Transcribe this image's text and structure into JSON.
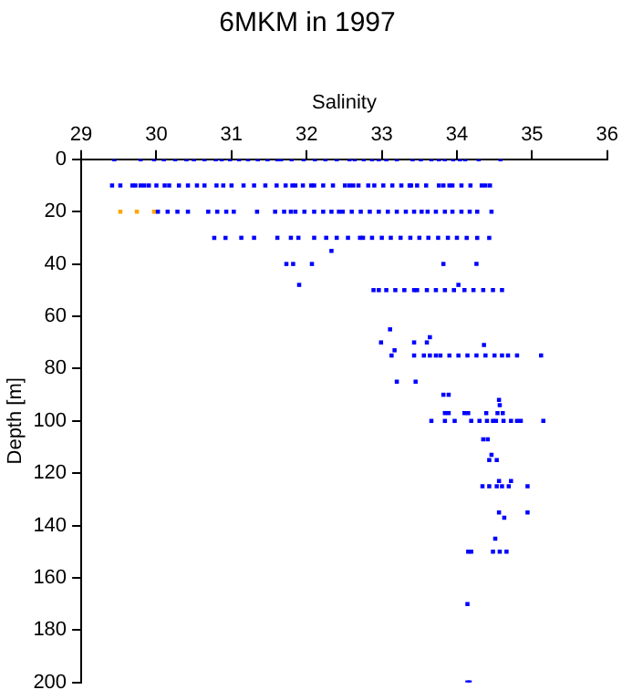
{
  "chart_data": {
    "type": "scatter",
    "title": "6MKM in 1997",
    "xlabel": "Salinity",
    "ylabel": "Depth [m]",
    "xlim": [
      29,
      36
    ],
    "xticks": [
      29,
      30,
      31,
      32,
      33,
      34,
      35,
      36
    ],
    "ylim": [
      200,
      0
    ],
    "yticks": [
      0,
      20,
      40,
      60,
      80,
      100,
      120,
      140,
      160,
      180,
      200
    ],
    "grid": false,
    "legend": false,
    "marker": "square",
    "series": [
      {
        "color": "#0000ff",
        "x": [
          29.44,
          29.79,
          29.97,
          30.1,
          30.25,
          30.4,
          30.5,
          30.64,
          30.79,
          30.87,
          30.98,
          31.1,
          31.22,
          31.35,
          31.48,
          31.61,
          31.66,
          31.8,
          31.96,
          32.11,
          32.25,
          32.4,
          32.57,
          32.64,
          32.76,
          32.87,
          32.96,
          33.06,
          33.2,
          33.41,
          33.52,
          33.66,
          33.76,
          33.84,
          33.95,
          34.04,
          34.11,
          34.29,
          34.58,
          29.41,
          29.52,
          29.68,
          29.72,
          29.79,
          29.84,
          29.9,
          30.0,
          30.11,
          30.17,
          30.3,
          30.42,
          30.54,
          30.64,
          30.8,
          30.89,
          31.0,
          31.16,
          31.3,
          31.45,
          31.6,
          31.72,
          31.81,
          31.85,
          31.95,
          32.06,
          32.1,
          32.22,
          32.35,
          32.51,
          32.57,
          32.62,
          32.69,
          32.82,
          32.9,
          33.02,
          33.14,
          33.26,
          33.37,
          33.39,
          33.47,
          33.59,
          33.76,
          33.82,
          33.9,
          33.94,
          34.06,
          34.18,
          34.33,
          34.38,
          34.44,
          30.02,
          30.15,
          30.28,
          30.42,
          30.69,
          30.81,
          30.93,
          31.03,
          31.34,
          31.58,
          31.7,
          31.79,
          31.85,
          31.97,
          32.1,
          32.22,
          32.33,
          32.43,
          32.48,
          32.6,
          32.72,
          32.84,
          32.96,
          33.08,
          33.2,
          33.32,
          33.43,
          33.53,
          33.61,
          33.72,
          33.84,
          33.94,
          34.06,
          34.17,
          34.27,
          34.46,
          30.77,
          30.92,
          31.13,
          31.3,
          31.61,
          31.79,
          31.89,
          32.1,
          32.26,
          32.4,
          32.55,
          32.71,
          32.75,
          32.87,
          33.0,
          33.12,
          33.25,
          33.38,
          33.5,
          33.62,
          33.75,
          33.88,
          34.0,
          34.13,
          34.27,
          34.43,
          32.33,
          31.73,
          31.82,
          32.07,
          33.82,
          34.26,
          31.9,
          34.02,
          32.89,
          32.96,
          33.06,
          33.18,
          33.3,
          33.43,
          33.47,
          33.6,
          33.72,
          33.84,
          33.96,
          34.1,
          34.22,
          34.35,
          34.48,
          34.6,
          33.11,
          33.64,
          32.99,
          33.43,
          33.6,
          34.36,
          33.17,
          33.13,
          33.43,
          33.56,
          33.64,
          33.72,
          33.78,
          33.9,
          34.02,
          34.14,
          34.26,
          34.38,
          34.5,
          34.6,
          34.68,
          34.8,
          35.12,
          33.2,
          33.45,
          33.82,
          33.89,
          34.56,
          34.57,
          33.84,
          33.89,
          34.1,
          34.15,
          34.39,
          34.54,
          34.61,
          33.66,
          33.84,
          33.97,
          34.19,
          34.3,
          34.4,
          34.48,
          34.52,
          34.62,
          34.72,
          34.8,
          34.85,
          35.15,
          34.35,
          34.41,
          34.46,
          34.43,
          34.53,
          34.56,
          34.72,
          34.34,
          34.43,
          34.53,
          34.6,
          34.69,
          34.94,
          34.56,
          34.94,
          34.63,
          34.51,
          34.15,
          34.19,
          34.48,
          34.57,
          34.66,
          34.14,
          34.14,
          34.17
        ],
        "values": [
          0,
          0,
          0,
          0,
          0,
          0,
          0,
          0,
          0,
          0,
          0,
          0,
          0,
          0,
          0,
          0,
          0,
          0,
          0,
          0,
          0,
          0,
          0,
          0,
          0,
          0,
          0,
          0,
          0,
          0,
          0,
          0,
          0,
          0,
          0,
          0,
          0,
          0,
          0,
          10,
          10,
          10,
          10,
          10,
          10,
          10,
          10,
          10,
          10,
          10,
          10,
          10,
          10,
          10,
          10,
          10,
          10,
          10,
          10,
          10,
          10,
          10,
          10,
          10,
          10,
          10,
          10,
          10,
          10,
          10,
          10,
          10,
          10,
          10,
          10,
          10,
          10,
          10,
          10,
          10,
          10,
          10,
          10,
          10,
          10,
          10,
          10,
          10,
          10,
          10,
          20,
          20,
          20,
          20,
          20,
          20,
          20,
          20,
          20,
          20,
          20,
          20,
          20,
          20,
          20,
          20,
          20,
          20,
          20,
          20,
          20,
          20,
          20,
          20,
          20,
          20,
          20,
          20,
          20,
          20,
          20,
          20,
          20,
          20,
          20,
          20,
          30,
          30,
          30,
          30,
          30,
          30,
          30,
          30,
          30,
          30,
          30,
          30,
          30,
          30,
          30,
          30,
          30,
          30,
          30,
          30,
          30,
          30,
          30,
          30,
          30,
          30,
          35,
          40,
          40,
          40,
          40,
          40,
          48,
          48,
          50,
          50,
          50,
          50,
          50,
          50,
          50,
          50,
          50,
          50,
          50,
          50,
          50,
          50,
          50,
          50,
          65,
          68,
          70,
          70,
          70,
          71,
          73,
          75,
          75,
          75,
          75,
          75,
          75,
          75,
          75,
          75,
          75,
          75,
          75,
          75,
          75,
          75,
          75,
          85,
          85,
          90,
          90,
          92,
          94,
          97,
          97,
          97,
          97,
          97,
          97,
          97,
          100,
          100,
          100,
          100,
          100,
          100,
          100,
          100,
          100,
          100,
          100,
          100,
          100,
          107,
          107,
          113,
          115,
          115,
          123,
          123,
          125,
          125,
          125,
          125,
          125,
          125,
          135,
          135,
          137,
          145,
          150,
          150,
          150,
          150,
          150,
          170,
          200,
          200
        ]
      },
      {
        "color": "#ffa500",
        "x": [
          29.52,
          29.74,
          29.97
        ],
        "values": [
          20,
          20,
          20
        ]
      }
    ]
  }
}
